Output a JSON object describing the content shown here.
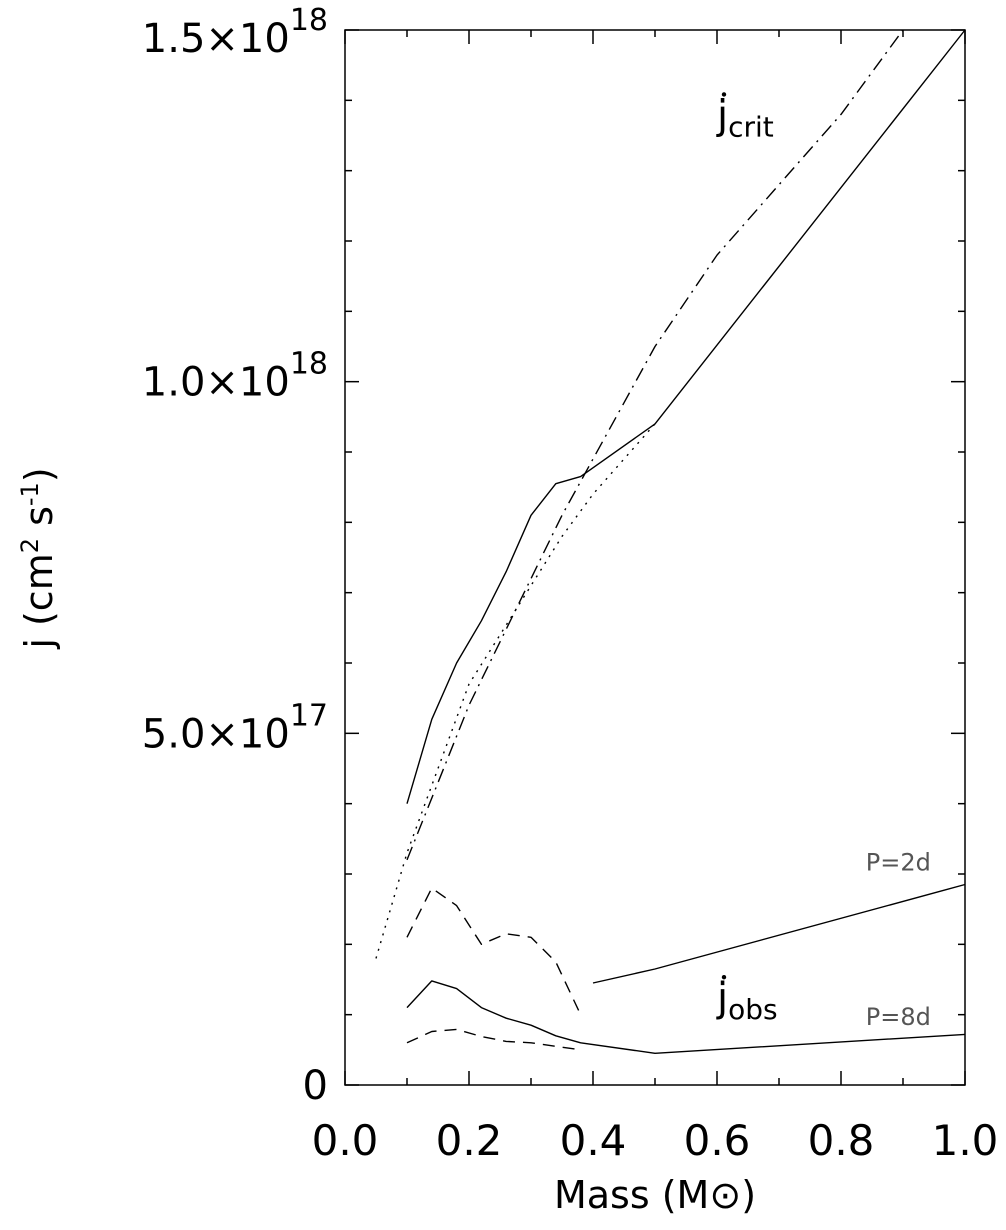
{
  "chart_data": {
    "type": "line",
    "xlabel": "Mass (M",
    "xlabel_symbol": "⊙",
    "xlabel_close": ")",
    "ylabel": "j (cm",
    "ylabel_sup1": "2",
    "ylabel_mid": " s",
    "ylabel_sup2": "-1",
    "ylabel_close": ")",
    "xlim": [
      0.0,
      1.0
    ],
    "ylim": [
      0,
      1.5e+18
    ],
    "x_ticks": [
      {
        "value": 0.0,
        "label": "0.0"
      },
      {
        "value": 0.2,
        "label": "0.2"
      },
      {
        "value": 0.4,
        "label": "0.4"
      },
      {
        "value": 0.6,
        "label": "0.6"
      },
      {
        "value": 0.8,
        "label": "0.8"
      },
      {
        "value": 1.0,
        "label": "1.0"
      }
    ],
    "y_ticks": [
      {
        "value": 0,
        "base": "0",
        "exp": ""
      },
      {
        "value": 5e+17,
        "base": "5.0×10",
        "exp": "17"
      },
      {
        "value": 1e+18,
        "base": "1.0×10",
        "exp": "18"
      },
      {
        "value": 1.5e+18,
        "base": "1.5×10",
        "exp": "18"
      }
    ],
    "series": [
      {
        "style": "solid",
        "group": "crit",
        "x": [
          0.1,
          0.14,
          0.18,
          0.22,
          0.26,
          0.3,
          0.34,
          0.38,
          0.5,
          1.0
        ],
        "y": [
          4e+17,
          5.2e+17,
          6e+17,
          6.6e+17,
          7.3e+17,
          8.1e+17,
          8.55e+17,
          8.65e+17,
          9.4e+17,
          1.5e+18
        ]
      },
      {
        "style": "dotted",
        "group": "crit",
        "x": [
          0.05,
          0.1,
          0.15,
          0.2,
          0.25,
          0.3,
          0.35,
          0.4,
          0.5
        ],
        "y": [
          1.8e+17,
          3.3e+17,
          4.5e+17,
          5.7e+17,
          6.4e+17,
          7.1e+17,
          7.8e+17,
          8.4e+17,
          9.4e+17
        ]
      },
      {
        "style": "dashdot",
        "group": "crit",
        "x": [
          0.1,
          0.15,
          0.2,
          0.25,
          0.3,
          0.35,
          0.4,
          0.5,
          0.6,
          0.7,
          0.8,
          0.9
        ],
        "y": [
          3.2e+17,
          4.3e+17,
          5.4e+17,
          6.3e+17,
          7.2e+17,
          8.1e+17,
          8.9e+17,
          1.05e+18,
          1.18e+18,
          1.28e+18,
          1.38e+18,
          1.5e+18
        ]
      },
      {
        "style": "dashed",
        "group": "obs-2d",
        "x": [
          0.1,
          0.14,
          0.18,
          0.22,
          0.26,
          0.3,
          0.34,
          0.38
        ],
        "y": [
          2.1e+17,
          2.8e+17,
          2.55e+17,
          2e+17,
          2.15e+17,
          2.1e+17,
          1.75e+17,
          1e+17
        ]
      },
      {
        "style": "solid",
        "group": "obs-2d",
        "x": [
          0.4,
          0.5,
          1.0
        ],
        "y": [
          1.45e+17,
          1.65e+17,
          2.85e+17
        ]
      },
      {
        "style": "solid",
        "group": "obs-8d",
        "x": [
          0.1,
          0.14,
          0.18,
          0.22,
          0.26,
          0.3,
          0.34,
          0.38,
          0.5,
          1.0
        ],
        "y": [
          1.1e+17,
          1.48e+17,
          1.37e+17,
          1.1e+17,
          9.5e+16,
          8.5e+16,
          7e+16,
          6e+16,
          4.5e+16,
          7.2e+16
        ]
      },
      {
        "style": "dashed",
        "group": "obs-8d",
        "x": [
          0.1,
          0.14,
          0.18,
          0.22,
          0.26,
          0.3,
          0.34,
          0.38
        ],
        "y": [
          6e+16,
          7.6e+16,
          7.9e+16,
          6.9e+16,
          6.2e+16,
          6e+16,
          5.5e+16,
          5e+16
        ]
      }
    ],
    "annotations": [
      {
        "text_main": "j",
        "text_sub": "crit",
        "x": 0.6,
        "y": 1.36e+18,
        "size": "large"
      },
      {
        "text_main": "j",
        "text_sub": "obs",
        "x": 0.6,
        "y": 1.05e+17,
        "size": "large"
      },
      {
        "text": "P=2d",
        "x": 0.84,
        "y": 3.05e+17,
        "size": "small"
      },
      {
        "text": "P=8d",
        "x": 0.84,
        "y": 8.5e+16,
        "size": "small"
      }
    ]
  }
}
